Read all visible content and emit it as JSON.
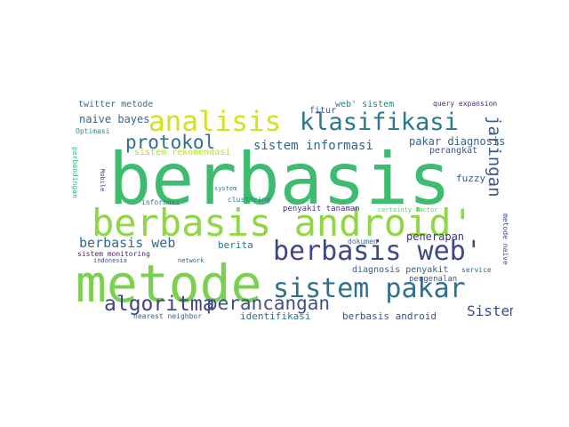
{
  "cloud": {
    "background": "#ffffff",
    "words": [
      {
        "text": "berbasis",
        "color": "#3dbb6f"
      },
      {
        "text": "metode",
        "color": "#7ad151"
      },
      {
        "text": "berbasis android'",
        "color": "#8fd744"
      },
      {
        "text": "berbasis web'",
        "color": "#3f4788"
      },
      {
        "text": "sistem pakar",
        "color": "#2c728e"
      },
      {
        "text": "analisis",
        "color": "#d2e21b"
      },
      {
        "text": "klasifikasi",
        "color": "#2a788e"
      },
      {
        "text": "protokol",
        "color": "#2e6f8e"
      },
      {
        "text": "algoritma",
        "color": "#414487"
      },
      {
        "text": "perancangan",
        "color": "#3b528b"
      },
      {
        "text": "jaringan",
        "color": "#38598c"
      },
      {
        "text": "berbasis web",
        "color": "#2f6c8e"
      },
      {
        "text": "sistem informasi",
        "color": "#30698e"
      },
      {
        "text": "Sistem",
        "color": "#3e4989"
      },
      {
        "text": "naive bayes",
        "color": "#31668e"
      },
      {
        "text": "pakar diagnosis",
        "color": "#33628d"
      },
      {
        "text": "twitter metode",
        "color": "#2d708e"
      },
      {
        "text": "web' sistem",
        "color": "#287d8e"
      },
      {
        "text": "fitur",
        "color": "#3a538b"
      },
      {
        "text": "perangkat",
        "color": "#39558c"
      },
      {
        "text": "fuzzy",
        "color": "#375b8d"
      },
      {
        "text": "sistem rekomendasi",
        "color": "#b8de29"
      },
      {
        "text": "berita",
        "color": "#2a788e"
      },
      {
        "text": "penerapan",
        "color": "#46337f"
      },
      {
        "text": "pengenalan",
        "color": "#3b528b"
      },
      {
        "text": "identifikasi",
        "color": "#2d708e"
      },
      {
        "text": "berbasis android",
        "color": "#3a538b"
      },
      {
        "text": "diagnosis penyakit",
        "color": "#355f8d"
      },
      {
        "text": "dokumen",
        "color": "#2c738e"
      },
      {
        "text": "penyakit tanaman",
        "color": "#453781"
      },
      {
        "text": "clustering",
        "color": "#26828e"
      },
      {
        "text": "sistem monitoring",
        "color": "#482475"
      },
      {
        "text": "indonesia",
        "color": "#3b528b"
      },
      {
        "text": "nearest neighbor",
        "color": "#33638d"
      },
      {
        "text": "service",
        "color": "#31688e"
      },
      {
        "text": "query expansion",
        "color": "#482677"
      },
      {
        "text": "Optimasi",
        "color": "#21918c"
      },
      {
        "text": "perbandingan",
        "color": "#35b779"
      },
      {
        "text": "metode naive",
        "color": "#3e4a89"
      },
      {
        "text": "informasi",
        "color": "#2a788e"
      },
      {
        "text": "system",
        "color": "#287c8e"
      },
      {
        "text": "network",
        "color": "#31688e"
      },
      {
        "text": "certainty factor",
        "color": "#5ec962"
      },
      {
        "text": "Mobile",
        "color": "#3e4989"
      }
    ]
  }
}
